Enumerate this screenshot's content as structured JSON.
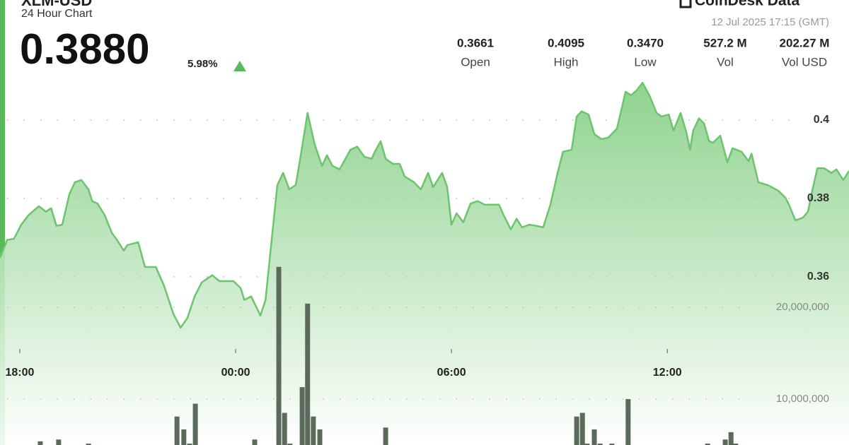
{
  "header": {
    "title": "XLM-USD",
    "subtitle": "24 Hour Chart",
    "price": "0.3880",
    "change": "5.98%",
    "brand": "CoinDesk Data",
    "timestamp": "12 Jul 2025 17:15 (GMT)"
  },
  "stats": [
    {
      "value": "0.3661",
      "label": "Open"
    },
    {
      "value": "0.4095",
      "label": "High"
    },
    {
      "value": "0.3470",
      "label": "Low"
    },
    {
      "value": "527.2 M",
      "label": "Vol"
    },
    {
      "value": "202.27 M",
      "label": "Vol USD"
    }
  ],
  "chart_data": [
    {
      "type": "line",
      "color": "#6cc46c",
      "x": [
        17.45,
        17.65,
        17.84,
        18.04,
        18.24,
        18.53,
        18.73,
        18.87,
        19.02,
        19.18,
        19.38,
        19.53,
        19.71,
        19.91,
        20.01,
        20.16,
        20.36,
        20.56,
        20.7,
        20.89,
        20.99,
        21.29,
        21.48,
        21.78,
        22.01,
        22.27,
        22.47,
        22.66,
        22.86,
        23.06,
        23.35,
        23.55,
        23.94,
        24.14,
        24.24,
        24.43,
        24.69,
        24.83,
        24.96,
        25.16,
        25.32,
        25.49,
        25.67,
        25.81,
        26.0,
        26.2,
        26.4,
        26.54,
        26.69,
        26.89,
        27.19,
        27.38,
        27.58,
        27.78,
        27.87,
        28.03,
        28.17,
        28.37,
        28.56,
        28.7,
        28.96,
        29.15,
        29.35,
        29.49,
        29.74,
        29.88,
        30.0,
        30.14,
        30.33,
        30.53,
        30.73,
        30.92,
        31.32,
        31.45,
        31.65,
        31.81,
        31.96,
        32.16,
        32.36,
        32.55,
        32.75,
        32.95,
        33.1,
        33.34,
        33.48,
        33.62,
        33.81,
        33.97,
        34.17,
        34.36,
        34.6,
        34.84,
        34.99,
        35.15,
        35.31,
        35.5,
        35.7,
        35.84,
        36.04,
        36.17,
        36.37,
        36.53,
        36.63,
        36.72,
        36.88,
        37.02,
        37.16,
        37.27,
        37.47,
        37.67,
        37.81,
        38.06,
        38.26,
        38.34,
        38.53,
        38.79,
        39.08,
        39.28,
        39.38,
        39.56,
        39.77,
        39.91,
        40.03,
        40.17,
        40.36,
        40.56,
        40.7,
        40.89,
        41.05
      ],
      "values": [
        0.3649,
        0.3694,
        0.3697,
        0.3733,
        0.3757,
        0.378,
        0.3766,
        0.3775,
        0.373,
        0.3733,
        0.3811,
        0.3841,
        0.3847,
        0.3823,
        0.3793,
        0.3787,
        0.3757,
        0.3712,
        0.3694,
        0.3667,
        0.3681,
        0.3688,
        0.3625,
        0.3625,
        0.3577,
        0.3505,
        0.347,
        0.3495,
        0.355,
        0.3586,
        0.3604,
        0.3589,
        0.3589,
        0.3571,
        0.3541,
        0.355,
        0.3501,
        0.3541,
        0.3658,
        0.3834,
        0.3865,
        0.3823,
        0.3834,
        0.391,
        0.4018,
        0.3937,
        0.3883,
        0.391,
        0.3883,
        0.3874,
        0.3924,
        0.3932,
        0.3906,
        0.3901,
        0.3919,
        0.3946,
        0.3901,
        0.3888,
        0.3888,
        0.3856,
        0.3841,
        0.3823,
        0.3865,
        0.3829,
        0.3865,
        0.3829,
        0.3733,
        0.3762,
        0.3739,
        0.3787,
        0.3793,
        0.3784,
        0.3784,
        0.3757,
        0.3721,
        0.3748,
        0.3726,
        0.3733,
        0.373,
        0.3726,
        0.3784,
        0.3865,
        0.3919,
        0.3924,
        0.4009,
        0.4022,
        0.4014,
        0.3964,
        0.3951,
        0.3955,
        0.3978,
        0.4072,
        0.4063,
        0.4076,
        0.4095,
        0.4063,
        0.4018,
        0.4009,
        0.4014,
        0.3973,
        0.4018,
        0.3968,
        0.3924,
        0.3973,
        0.4004,
        0.3991,
        0.3946,
        0.3942,
        0.396,
        0.3892,
        0.3928,
        0.3919,
        0.3895,
        0.3914,
        0.3841,
        0.3834,
        0.382,
        0.3802,
        0.3784,
        0.3744,
        0.3751,
        0.3766,
        0.382,
        0.3877,
        0.3877,
        0.3865,
        0.3874,
        0.3847,
        0.387
      ],
      "xlim": [
        17.45,
        41.05
      ],
      "xticks": [
        {
          "value": 18,
          "label": "18:00"
        },
        {
          "value": 24,
          "label": "00:00"
        },
        {
          "value": 30,
          "label": "06:00"
        },
        {
          "value": 36,
          "label": "12:00"
        }
      ],
      "ylim": [
        0.3171,
        0.4306
      ],
      "yticks": [
        0.36,
        0.38,
        0.4
      ],
      "grid": true
    },
    {
      "type": "bar",
      "color": "#5b6a5a",
      "x": [
        18.57,
        19.08,
        19.91,
        22.37,
        22.56,
        22.72,
        22.88,
        24.53,
        25.2,
        25.36,
        25.51,
        25.85,
        26.0,
        26.16,
        26.34,
        28.17,
        33.48,
        33.64,
        33.77,
        33.97,
        34.13,
        34.46,
        34.91,
        37.12,
        37.61,
        37.77,
        37.9
      ],
      "values": [
        5400000,
        5600000,
        5150000,
        8100000,
        6700000,
        5150000,
        9500000,
        5600000,
        24400000,
        8500000,
        5150000,
        11300000,
        20400000,
        8100000,
        6700000,
        6900000,
        8100000,
        8500000,
        5150000,
        6700000,
        5150000,
        5150000,
        10000000,
        5150000,
        5600000,
        6400000,
        5150000
      ],
      "xlim": [
        17.45,
        41.05
      ],
      "ylim": [
        5000000,
        53460000
      ],
      "yticks": [
        {
          "value": 10000000,
          "label": "10,000,000"
        },
        {
          "value": 20000000,
          "label": "20,000,000"
        }
      ],
      "grid": true
    }
  ]
}
